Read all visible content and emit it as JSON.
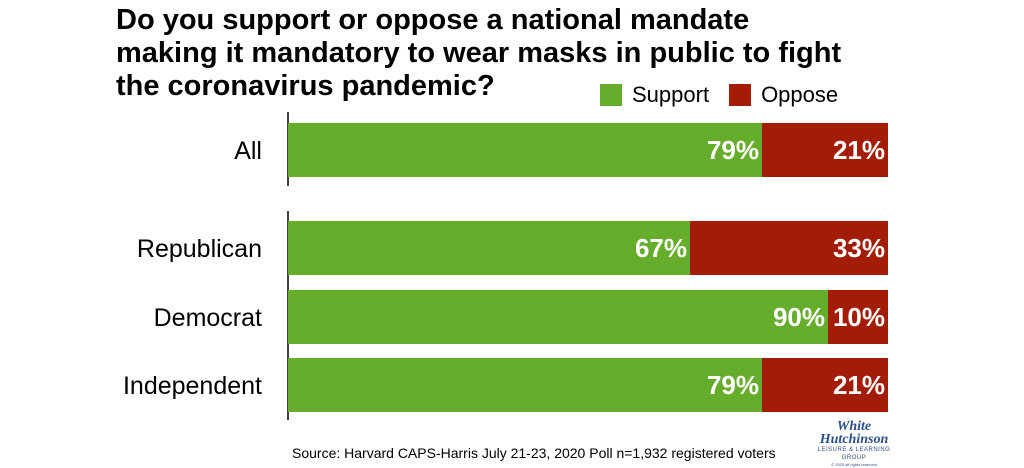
{
  "chart_data": {
    "type": "bar",
    "orientation": "horizontal",
    "stacked": true,
    "title": "Do you support or oppose a national mandate making it mandatory to wear masks in public to fight the coronavirus pandemic?",
    "title_lines": [
      "Do you support or oppose a national mandate",
      "making it mandatory to wear masks in public to fight",
      "the coronavirus pandemic?"
    ],
    "categories": [
      "All",
      "Republican",
      "Democrat",
      "Independent"
    ],
    "series": [
      {
        "name": "Support",
        "color": "#66ad2c",
        "values": [
          79,
          67,
          90,
          79
        ],
        "labels": [
          "79%",
          "67%",
          "90%",
          "79%"
        ]
      },
      {
        "name": "Oppose",
        "color": "#a31d06",
        "values": [
          21,
          33,
          10,
          21
        ],
        "labels": [
          "21%",
          "33%",
          "10%",
          "21%"
        ]
      }
    ],
    "xlim": [
      0,
      100
    ],
    "legend_position": "top-right",
    "grid": false
  },
  "source": "Source: Harvard CAPS-Harris July 21-23, 2020 Poll n=1,932 registered voters",
  "logo": {
    "line1": "White",
    "line2": "Hutchinson",
    "line3": "LEISURE & LEARNING GROUP",
    "line4": "© 2020 all rights reserved"
  }
}
